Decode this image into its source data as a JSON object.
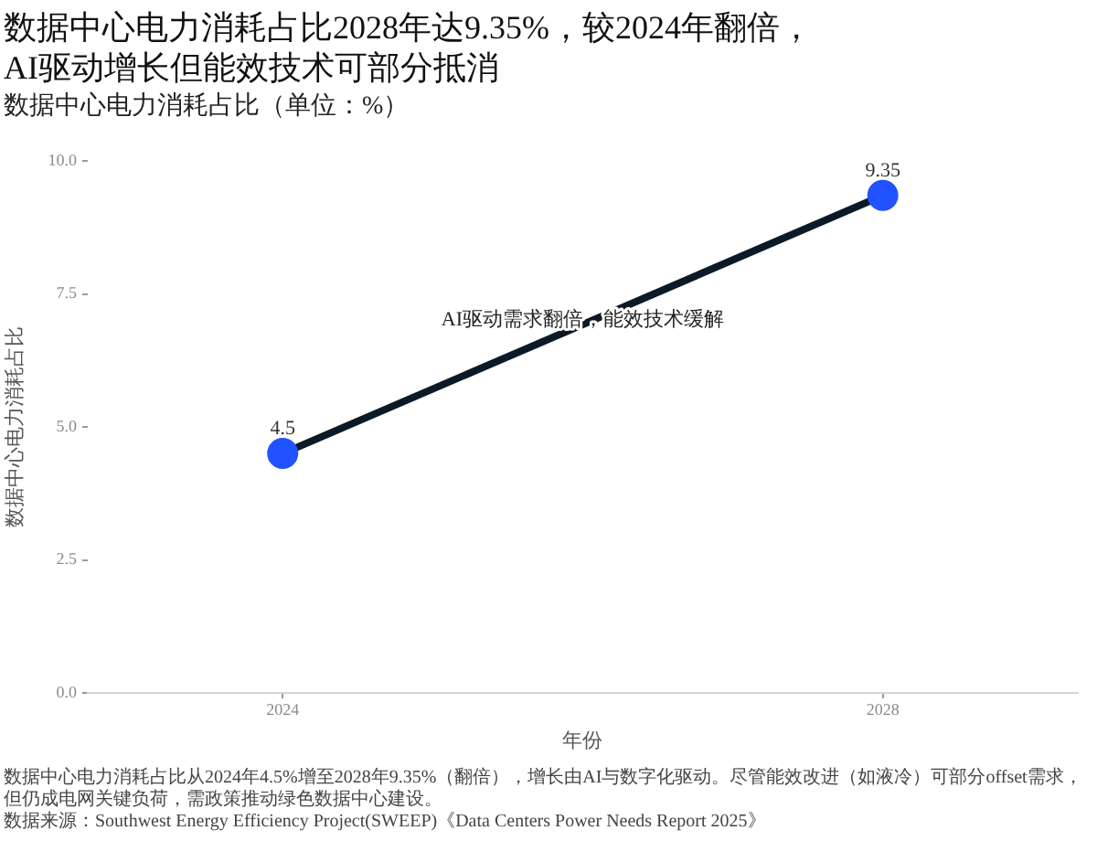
{
  "chart_data": {
    "type": "line",
    "title": "数据中心电力消耗占比2028年达9.35%，较2024年翻倍，\nAI驱动增长但能效技术可部分抵消",
    "subtitle": "数据中心电力消耗占比（单位：%）",
    "xlabel": "年份",
    "ylabel": "数据中心电力消耗占比",
    "x": [
      2024,
      2028
    ],
    "values": [
      4.5,
      9.35
    ],
    "color": "#0b1a26",
    "colors": [
      "#2152ff",
      "#2152ff"
    ],
    "xlim": [
      2022.7,
      2029.3
    ],
    "xticks": [
      2024,
      2028
    ],
    "ylim": [
      0,
      10
    ],
    "yticks": [
      {
        "value": 0,
        "label": "0.0"
      },
      2.5,
      {
        "value": 5,
        "label": "5.0"
      },
      7.5,
      {
        "value": 10,
        "label": "10.0"
      }
    ],
    "grid": false,
    "marker": "circle",
    "line_style": "solid",
    "data_labels": true,
    "annotations": [
      {
        "text": "AI驱动需求翻倍，能效技术缓解",
        "x": 2026,
        "y": 7.0
      },
      "数据中心电力消耗占比从2024年4.5%增至2028年9.35%（翻倍），增长由AI与数字化驱动。尽管能效改进（如液冷）可部分offset需求，但仍成电网关键负荷，需政策推动绿色数据中心建设。",
      "数据来源：Southwest Energy Efficiency Project(SWEEP)《Data Centers Power Needs Report 2025》"
    ]
  }
}
